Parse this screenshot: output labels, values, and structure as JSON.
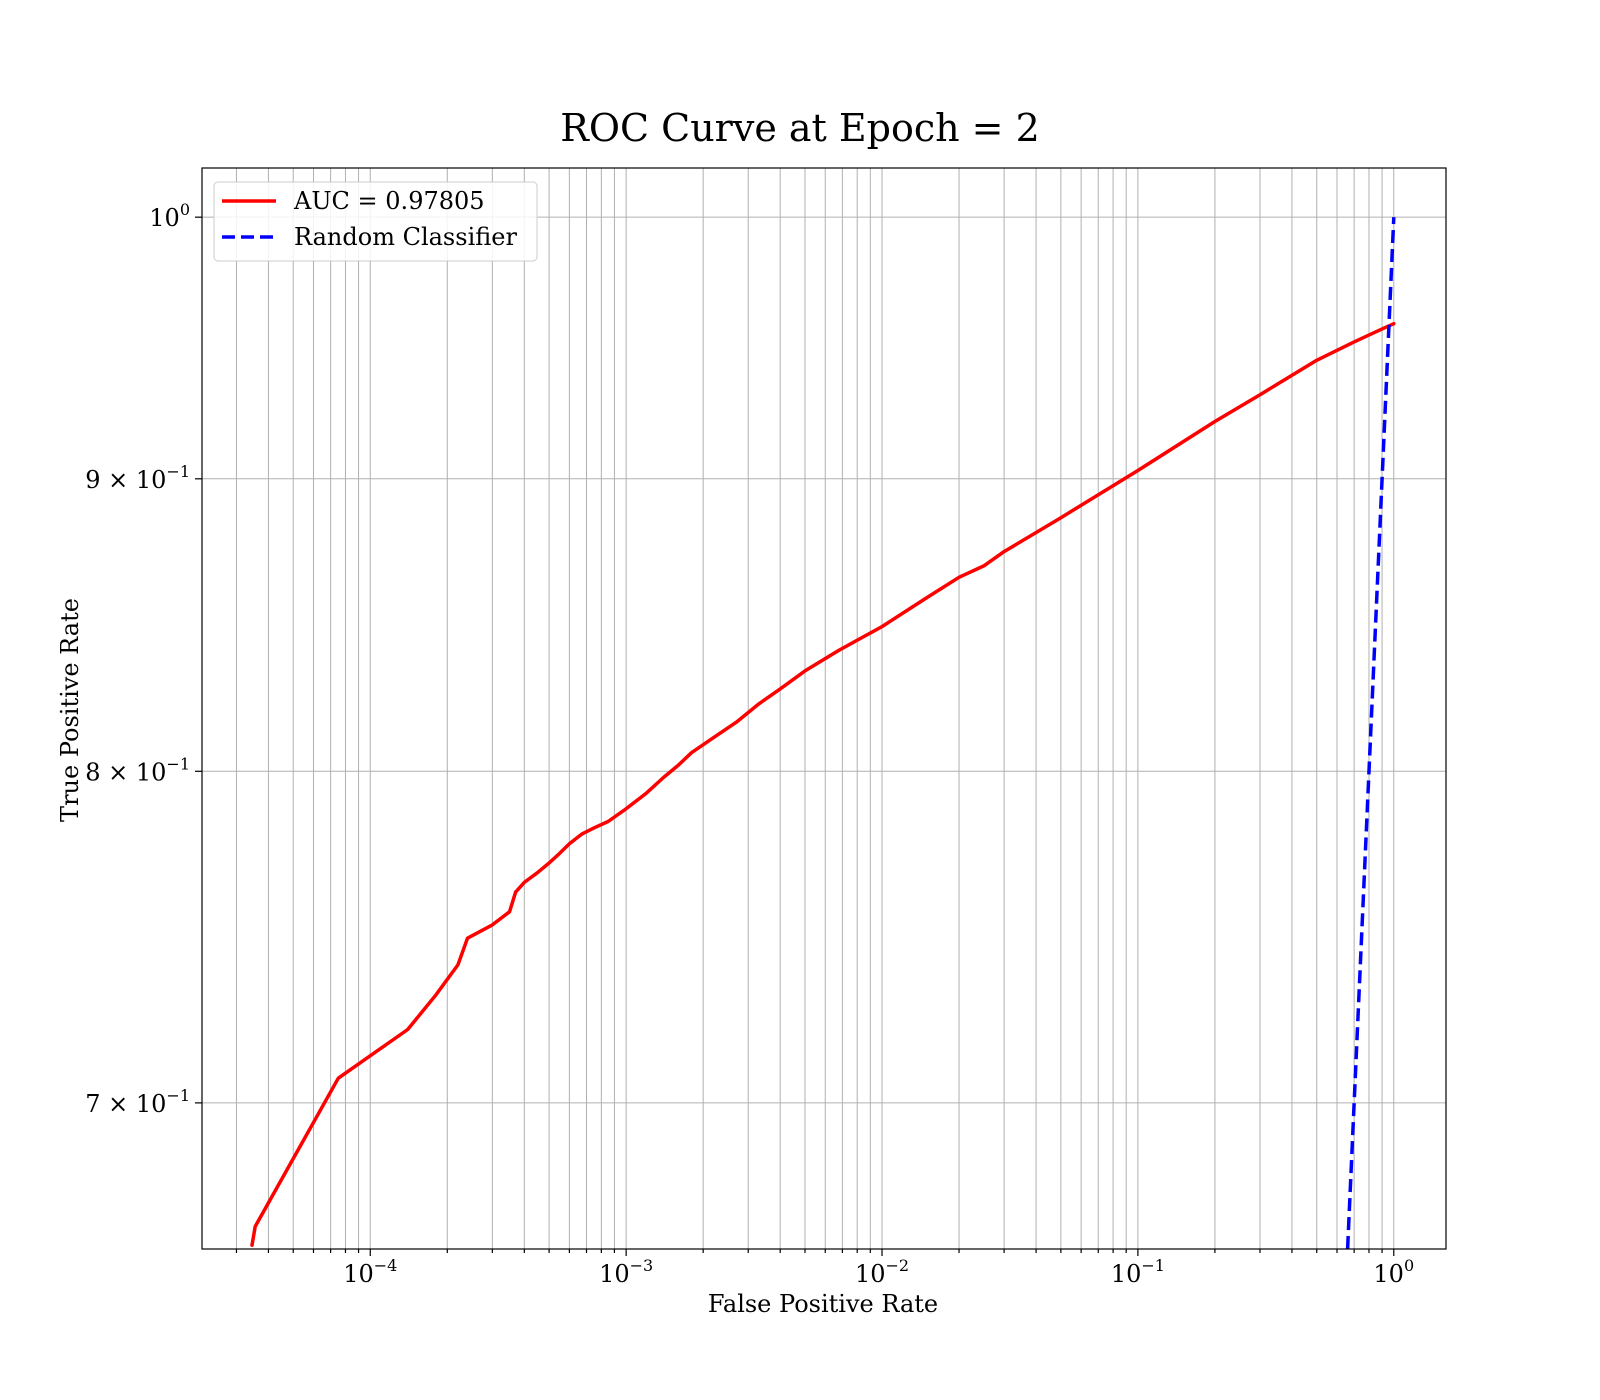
{
  "chart_data": {
    "type": "line",
    "title": "ROC Curve at Epoch = 2",
    "xlabel": "False Positive Rate",
    "ylabel": "True Positive Rate",
    "xscale": "log",
    "yscale": "log",
    "xlim": [
      2.2e-05,
      1.6
    ],
    "ylim": [
      0.66,
      1.02
    ],
    "grid": true,
    "legend_position": "top-left",
    "x_tick_labels": [
      {
        "base": "10",
        "exp": "−4"
      },
      {
        "base": "10",
        "exp": "−3"
      },
      {
        "base": "10",
        "exp": "−2"
      },
      {
        "base": "10",
        "exp": "−1"
      },
      {
        "base": "10",
        "exp": "0"
      }
    ],
    "y_tick_labels": [
      {
        "base": "10",
        "exp": "0"
      },
      {
        "base": "9 × 10",
        "exp": "−1"
      },
      {
        "base": "8 × 10",
        "exp": "−1"
      },
      {
        "base": "7 × 10",
        "exp": "−1"
      }
    ],
    "series": [
      {
        "name": "AUC = 0.97805",
        "color": "#ff0000",
        "style": "solid",
        "x": [
          3.45e-05,
          3.55e-05,
          7.5e-05,
          0.00014,
          0.00018,
          0.00022,
          0.00024,
          0.0003,
          0.00035,
          0.00037,
          0.0004,
          0.00045,
          0.0005,
          0.00055,
          0.0006,
          0.00067,
          0.00075,
          0.00085,
          0.001,
          0.0012,
          0.0014,
          0.0016,
          0.0018,
          0.0022,
          0.0027,
          0.0033,
          0.004,
          0.005,
          0.0068,
          0.01,
          0.015,
          0.02,
          0.025,
          0.03,
          0.05,
          0.1,
          0.2,
          0.3,
          0.5,
          0.7,
          0.9,
          1.0
        ],
        "y": [
          0.661,
          0.666,
          0.707,
          0.721,
          0.731,
          0.74,
          0.748,
          0.752,
          0.756,
          0.762,
          0.765,
          0.768,
          0.771,
          0.774,
          0.777,
          0.78,
          0.782,
          0.784,
          0.788,
          0.793,
          0.798,
          0.802,
          0.806,
          0.811,
          0.816,
          0.822,
          0.827,
          0.833,
          0.84,
          0.848,
          0.858,
          0.865,
          0.869,
          0.874,
          0.886,
          0.903,
          0.921,
          0.931,
          0.944,
          0.951,
          0.956,
          0.958
        ]
      },
      {
        "name": "Random Classifier",
        "color": "#0000ff",
        "style": "dashed",
        "x": [
          0.66,
          1.0
        ],
        "y": [
          0.66,
          1.0
        ]
      }
    ]
  }
}
